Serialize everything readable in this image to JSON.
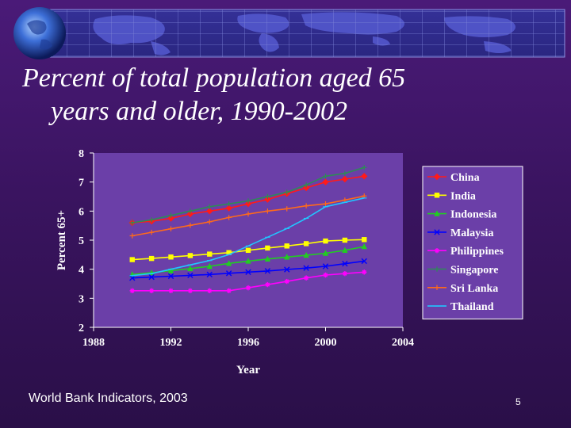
{
  "slide": {
    "title_line1": "Percent of total population aged 65",
    "title_line2": "years and older, 1990-2002",
    "source": "World Bank Indicators, 2003",
    "page_number": "5"
  },
  "colors": {
    "background": "#3a1460",
    "banner": "#2c2a86",
    "plot_area": "#6b3fa8",
    "legend_bg": "#6b3fa8",
    "text": "#ffffff"
  },
  "chart_data": {
    "type": "line",
    "title": "",
    "xlabel": "Year",
    "ylabel": "Percent 65+",
    "xlim": [
      1988,
      2004
    ],
    "ylim": [
      2,
      8
    ],
    "x_ticks": [
      1988,
      1992,
      1996,
      2000,
      2004
    ],
    "y_ticks": [
      2,
      3,
      4,
      5,
      6,
      7,
      8
    ],
    "grid": false,
    "legend_position": "right",
    "x": [
      1990,
      1991,
      1992,
      1993,
      1994,
      1995,
      1996,
      1997,
      1998,
      1999,
      2000,
      2001,
      2002
    ],
    "series": [
      {
        "name": "China",
        "color": "#ff1a1a",
        "marker": "diamond",
        "values": [
          5.6,
          5.65,
          5.75,
          5.9,
          6.0,
          6.1,
          6.25,
          6.4,
          6.6,
          6.8,
          7.0,
          7.1,
          7.2
        ]
      },
      {
        "name": "India",
        "color": "#ffff00",
        "marker": "square",
        "values": [
          4.33,
          4.37,
          4.42,
          4.47,
          4.52,
          4.57,
          4.65,
          4.73,
          4.8,
          4.88,
          4.97,
          5.0,
          5.02
        ]
      },
      {
        "name": "Indonesia",
        "color": "#22cc22",
        "marker": "triangle",
        "values": [
          3.82,
          3.88,
          3.95,
          4.02,
          4.1,
          4.2,
          4.28,
          4.35,
          4.42,
          4.48,
          4.55,
          4.65,
          4.78
        ]
      },
      {
        "name": "Malaysia",
        "color": "#0000ff",
        "marker": "x",
        "values": [
          3.7,
          3.73,
          3.76,
          3.79,
          3.82,
          3.86,
          3.9,
          3.94,
          3.99,
          4.04,
          4.1,
          4.19,
          4.28
        ]
      },
      {
        "name": "Philippines",
        "color": "#ff00ff",
        "marker": "asterisk",
        "values": [
          3.26,
          3.26,
          3.26,
          3.26,
          3.26,
          3.26,
          3.36,
          3.47,
          3.58,
          3.7,
          3.8,
          3.85,
          3.9
        ]
      },
      {
        "name": "Singapore",
        "color": "#2e8b57",
        "marker": "circle",
        "values": [
          5.6,
          5.7,
          5.85,
          6.0,
          6.15,
          6.25,
          6.35,
          6.5,
          6.65,
          6.9,
          7.2,
          7.3,
          7.5
        ]
      },
      {
        "name": "Sri Lanka",
        "color": "#ff6a1a",
        "marker": "plus",
        "values": [
          5.15,
          5.27,
          5.39,
          5.51,
          5.63,
          5.78,
          5.9,
          6.0,
          6.08,
          6.18,
          6.25,
          6.38,
          6.52
        ]
      },
      {
        "name": "Thailand",
        "color": "#22c5ff",
        "marker": "dash",
        "values": [
          3.78,
          3.85,
          4.0,
          4.15,
          4.3,
          4.5,
          4.8,
          5.1,
          5.4,
          5.75,
          6.15,
          6.3,
          6.45
        ]
      }
    ]
  }
}
